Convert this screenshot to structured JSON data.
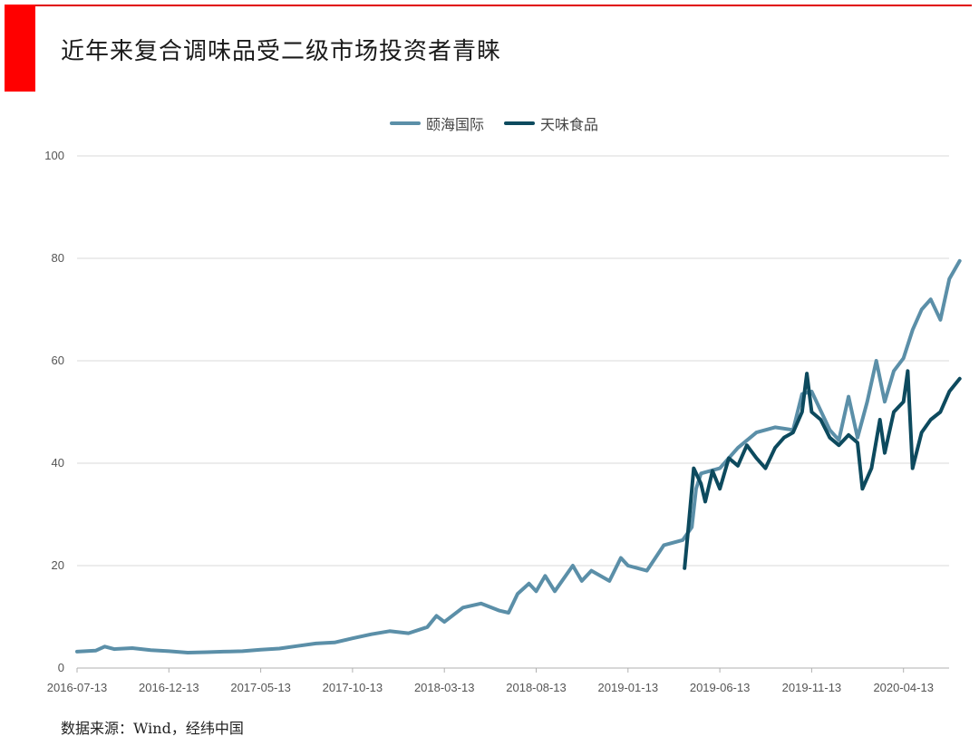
{
  "title": "近年来复合调味品受二级市场投资者青睐",
  "source": "数据来源：Wind，经纬中国",
  "colors": {
    "brand_red": "#ff0000",
    "series1": "#5b8fa8",
    "series2": "#0d4a5e"
  },
  "chart_data": {
    "type": "line",
    "title": "近年来复合调味品受二级市场投资者青睐",
    "xlabel": "",
    "ylabel": "",
    "ylim": [
      0,
      100
    ],
    "yticks": [
      0,
      20,
      40,
      60,
      80,
      100
    ],
    "xticks": [
      "2016-07-13",
      "2016-12-13",
      "2017-05-13",
      "2017-10-13",
      "2018-03-13",
      "2018-08-13",
      "2019-01-13",
      "2019-06-13",
      "2019-11-13",
      "2020-04-13"
    ],
    "xrange": [
      "2016-07-13",
      "2020-07-15"
    ],
    "grid": true,
    "legend_position": "top-center",
    "series": [
      {
        "name": "颐海国际",
        "color": "#5b8fa8",
        "points": [
          [
            "2016-07-13",
            3.2
          ],
          [
            "2016-08-13",
            3.4
          ],
          [
            "2016-08-28",
            4.2
          ],
          [
            "2016-09-13",
            3.7
          ],
          [
            "2016-10-13",
            3.9
          ],
          [
            "2016-11-13",
            3.5
          ],
          [
            "2016-12-13",
            3.3
          ],
          [
            "2017-01-13",
            3.0
          ],
          [
            "2017-02-13",
            3.1
          ],
          [
            "2017-03-13",
            3.2
          ],
          [
            "2017-04-13",
            3.3
          ],
          [
            "2017-05-13",
            3.6
          ],
          [
            "2017-06-13",
            3.8
          ],
          [
            "2017-07-13",
            4.3
          ],
          [
            "2017-08-13",
            4.8
          ],
          [
            "2017-09-13",
            5.0
          ],
          [
            "2017-10-13",
            5.8
          ],
          [
            "2017-11-13",
            6.6
          ],
          [
            "2017-12-13",
            7.2
          ],
          [
            "2018-01-13",
            6.8
          ],
          [
            "2018-02-13",
            8.0
          ],
          [
            "2018-02-28",
            10.2
          ],
          [
            "2018-03-13",
            9.0
          ],
          [
            "2018-04-13",
            11.8
          ],
          [
            "2018-05-13",
            12.6
          ],
          [
            "2018-06-13",
            11.2
          ],
          [
            "2018-06-28",
            10.8
          ],
          [
            "2018-07-13",
            14.5
          ],
          [
            "2018-08-01",
            16.5
          ],
          [
            "2018-08-13",
            15.0
          ],
          [
            "2018-08-28",
            18.0
          ],
          [
            "2018-09-13",
            15.0
          ],
          [
            "2018-10-13",
            20.0
          ],
          [
            "2018-10-28",
            17.0
          ],
          [
            "2018-11-13",
            19.0
          ],
          [
            "2018-12-13",
            17.0
          ],
          [
            "2019-01-01",
            21.5
          ],
          [
            "2019-01-13",
            20.0
          ],
          [
            "2019-02-13",
            19.0
          ],
          [
            "2019-03-13",
            24.0
          ],
          [
            "2019-04-13",
            25.0
          ],
          [
            "2019-04-28",
            27.5
          ],
          [
            "2019-05-05",
            35.0
          ],
          [
            "2019-05-13",
            38.0
          ],
          [
            "2019-06-13",
            39.0
          ],
          [
            "2019-07-13",
            43.0
          ],
          [
            "2019-08-13",
            46.0
          ],
          [
            "2019-09-13",
            47.0
          ],
          [
            "2019-10-13",
            46.5
          ],
          [
            "2019-10-28",
            53.5
          ],
          [
            "2019-11-13",
            54.0
          ],
          [
            "2019-12-13",
            46.5
          ],
          [
            "2019-12-28",
            44.5
          ],
          [
            "2020-01-13",
            53.0
          ],
          [
            "2020-01-28",
            45.0
          ],
          [
            "2020-02-13",
            52.0
          ],
          [
            "2020-02-28",
            60.0
          ],
          [
            "2020-03-13",
            52.0
          ],
          [
            "2020-03-28",
            58.0
          ],
          [
            "2020-04-13",
            60.5
          ],
          [
            "2020-04-28",
            66.0
          ],
          [
            "2020-05-13",
            70.0
          ],
          [
            "2020-05-28",
            72.0
          ],
          [
            "2020-06-13",
            68.0
          ],
          [
            "2020-06-28",
            76.0
          ],
          [
            "2020-07-15",
            79.5
          ]
        ]
      },
      {
        "name": "天味食品",
        "color": "#0d4a5e",
        "points": [
          [
            "2019-04-16",
            19.5
          ],
          [
            "2019-04-22",
            27.0
          ],
          [
            "2019-05-01",
            39.0
          ],
          [
            "2019-05-13",
            36.0
          ],
          [
            "2019-05-20",
            32.5
          ],
          [
            "2019-06-01",
            38.5
          ],
          [
            "2019-06-13",
            35.0
          ],
          [
            "2019-06-28",
            41.0
          ],
          [
            "2019-07-13",
            39.5
          ],
          [
            "2019-07-28",
            43.5
          ],
          [
            "2019-08-13",
            41.0
          ],
          [
            "2019-08-28",
            39.0
          ],
          [
            "2019-09-13",
            43.0
          ],
          [
            "2019-09-28",
            45.0
          ],
          [
            "2019-10-13",
            46.0
          ],
          [
            "2019-10-28",
            50.0
          ],
          [
            "2019-11-05",
            57.5
          ],
          [
            "2019-11-13",
            50.0
          ],
          [
            "2019-11-28",
            48.5
          ],
          [
            "2019-12-13",
            45.0
          ],
          [
            "2019-12-28",
            43.5
          ],
          [
            "2020-01-13",
            45.5
          ],
          [
            "2020-01-28",
            44.0
          ],
          [
            "2020-02-05",
            35.0
          ],
          [
            "2020-02-20",
            39.0
          ],
          [
            "2020-03-05",
            48.5
          ],
          [
            "2020-03-13",
            42.0
          ],
          [
            "2020-03-28",
            50.0
          ],
          [
            "2020-04-13",
            52.0
          ],
          [
            "2020-04-20",
            58.0
          ],
          [
            "2020-04-28",
            39.0
          ],
          [
            "2020-05-13",
            46.0
          ],
          [
            "2020-05-28",
            48.5
          ],
          [
            "2020-06-13",
            50.0
          ],
          [
            "2020-06-28",
            54.0
          ],
          [
            "2020-07-15",
            56.5
          ]
        ]
      }
    ]
  }
}
